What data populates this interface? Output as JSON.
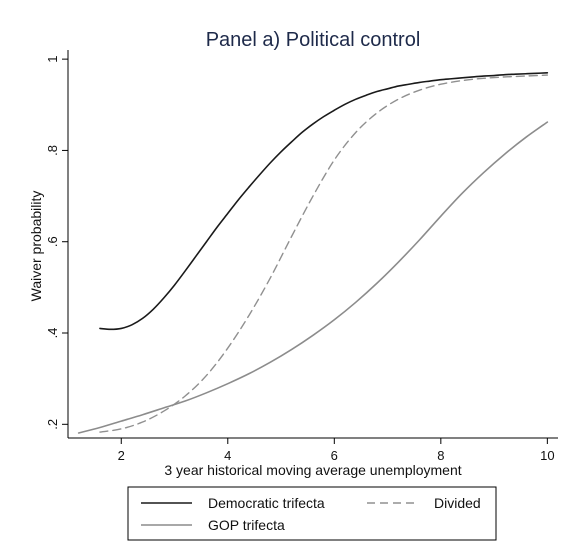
{
  "chart_data": {
    "type": "line",
    "title": "Panel a) Political control",
    "xlabel": "3 year historical moving average unemployment",
    "ylabel": "Waiver probability",
    "xlim": [
      1.0,
      10.2
    ],
    "ylim": [
      0.17,
      1.02
    ],
    "xticks": [
      2,
      4,
      6,
      8,
      10
    ],
    "yticks": [
      0.2,
      0.4,
      0.6,
      0.8,
      1
    ],
    "ytick_labels": [
      ".2",
      ".4",
      ".6",
      ".8",
      "1"
    ],
    "grid": false,
    "legend_position": "bottom",
    "series": [
      {
        "name": "Democratic trifecta",
        "color": "#1a1a1a",
        "dash": "solid",
        "x": [
          1.6,
          1.8,
          2.0,
          2.2,
          2.4,
          2.6,
          2.8,
          3.0,
          3.2,
          3.4,
          3.6,
          3.8,
          4.0,
          4.2,
          4.4,
          4.6,
          4.8,
          5.0,
          5.2,
          5.4,
          5.6,
          5.8,
          6.0,
          6.2,
          6.4,
          6.6,
          6.8,
          7.0,
          7.2,
          7.4,
          7.6,
          7.8,
          8.0,
          8.2,
          8.4,
          8.6,
          8.8,
          9.0,
          9.2,
          9.4,
          9.6,
          9.8,
          10.0
        ],
        "y": [
          0.41,
          0.408,
          0.41,
          0.418,
          0.432,
          0.452,
          0.477,
          0.505,
          0.536,
          0.568,
          0.6,
          0.632,
          0.662,
          0.692,
          0.72,
          0.747,
          0.773,
          0.797,
          0.819,
          0.84,
          0.858,
          0.874,
          0.888,
          0.901,
          0.912,
          0.921,
          0.929,
          0.935,
          0.941,
          0.945,
          0.949,
          0.952,
          0.955,
          0.957,
          0.959,
          0.961,
          0.963,
          0.964,
          0.966,
          0.967,
          0.968,
          0.969,
          0.97
        ]
      },
      {
        "name": "Divided",
        "color": "#909090",
        "dash": "dashed",
        "x": [
          1.6,
          2.0,
          2.4,
          2.8,
          3.2,
          3.6,
          4.0,
          4.4,
          4.8,
          5.2,
          5.6,
          6.0,
          6.4,
          6.8,
          7.2,
          7.6,
          8.0,
          8.4,
          8.8,
          9.2,
          9.6,
          10.0
        ],
        "y": [
          0.183,
          0.19,
          0.205,
          0.229,
          0.262,
          0.307,
          0.367,
          0.439,
          0.521,
          0.612,
          0.7,
          0.779,
          0.839,
          0.882,
          0.912,
          0.932,
          0.945,
          0.953,
          0.958,
          0.961,
          0.963,
          0.965
        ]
      },
      {
        "name": "GOP trifecta",
        "color": "#8c8c8c",
        "dash": "solid",
        "x": [
          1.2,
          1.6,
          2.0,
          2.4,
          2.8,
          3.2,
          3.6,
          4.0,
          4.4,
          4.8,
          5.2,
          5.6,
          6.0,
          6.4,
          6.8,
          7.2,
          7.6,
          8.0,
          8.4,
          8.8,
          9.2,
          9.6,
          10.0
        ],
        "y": [
          0.181,
          0.193,
          0.207,
          0.221,
          0.236,
          0.251,
          0.269,
          0.289,
          0.311,
          0.336,
          0.364,
          0.395,
          0.429,
          0.467,
          0.509,
          0.555,
          0.604,
          0.656,
          0.706,
          0.751,
          0.792,
          0.829,
          0.862
        ]
      }
    ]
  }
}
